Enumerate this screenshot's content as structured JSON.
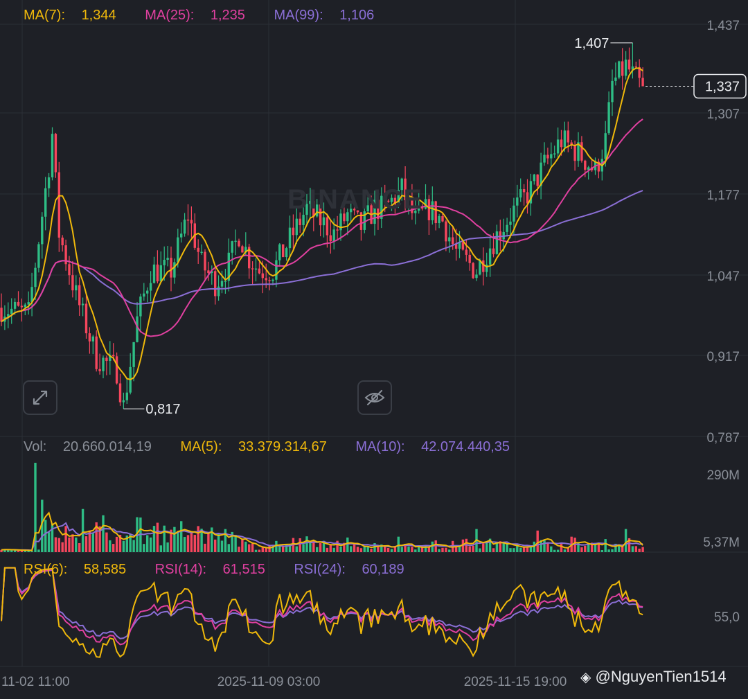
{
  "watermark": "BINANCE",
  "credit": "@NguyenTien1514",
  "colors": {
    "background": "#1e2026",
    "grid": "#2b2f36",
    "up": "#2ebd85",
    "down": "#f6465d",
    "ma_fast": "#f0b90b",
    "ma_mid": "#e040a0",
    "ma_slow": "#8b6fd6"
  },
  "legend_price": [
    {
      "label": "MA(7):",
      "value": "1,344",
      "color": "#f0b90b"
    },
    {
      "label": "MA(25):",
      "value": "1,235",
      "color": "#e040a0"
    },
    {
      "label": "MA(99):",
      "value": "1,106",
      "color": "#8b6fd6"
    }
  ],
  "legend_volume": [
    {
      "label": "Vol:",
      "value": "20.660.014,19",
      "color": "#8a8f98"
    },
    {
      "label": "MA(5):",
      "value": "33.379.314,67",
      "color": "#f0b90b"
    },
    {
      "label": "MA(10):",
      "value": "42.074.440,35",
      "color": "#8b6fd6"
    }
  ],
  "legend_rsi": [
    {
      "label": "RSI(6):",
      "value": "58,585",
      "color": "#f0b90b"
    },
    {
      "label": "RSI(14):",
      "value": "61,515",
      "color": "#e040a0"
    },
    {
      "label": "RSI(24):",
      "value": "60,189",
      "color": "#8b6fd6"
    }
  ],
  "icons": {
    "expand": "expand-icon",
    "hide": "eye-off-icon",
    "logo": "binance-logo-icon"
  },
  "chart_data": {
    "type": "candlestick",
    "price_axis": {
      "ticks": [
        "1,437",
        "1,307",
        "1,177",
        "1,047",
        "0,917",
        "0,787"
      ],
      "values": [
        1.437,
        1.307,
        1.177,
        1.047,
        0.917,
        0.787
      ]
    },
    "current_price": "1,337",
    "high_label": "1,407",
    "low_label": "0,817",
    "time_labels": [
      "11-02 11:00",
      "2025-11-09 03:00",
      "2025-11-15 19:00"
    ],
    "volume_axis": {
      "ticks": [
        "290M",
        "5,37M"
      ]
    },
    "rsi_axis": {
      "ticks": [
        "55,0"
      ]
    },
    "close_path": [
      [
        0,
        0.98
      ],
      [
        8,
        0.97
      ],
      [
        14,
        1.21
      ],
      [
        15,
        1.26
      ],
      [
        17,
        1.1
      ],
      [
        22,
        1.0
      ],
      [
        28,
        0.9
      ],
      [
        34,
        0.88
      ],
      [
        36,
        0.82
      ],
      [
        40,
        0.96
      ],
      [
        44,
        1.04
      ],
      [
        50,
        1.04
      ],
      [
        55,
        1.13
      ],
      [
        59,
        1.05
      ],
      [
        63,
        1.02
      ],
      [
        67,
        1.05
      ],
      [
        70,
        1.1
      ],
      [
        73,
        1.06
      ],
      [
        76,
        1.04
      ],
      [
        80,
        1.04
      ],
      [
        86,
        1.1
      ],
      [
        90,
        1.14
      ],
      [
        94,
        1.12
      ],
      [
        98,
        1.1
      ],
      [
        102,
        1.13
      ],
      [
        106,
        1.11
      ],
      [
        110,
        1.14
      ],
      [
        113,
        1.14
      ],
      [
        118,
        1.17
      ],
      [
        122,
        1.12
      ],
      [
        126,
        1.14
      ],
      [
        130,
        1.12
      ],
      [
        134,
        1.07
      ],
      [
        140,
        1.04
      ],
      [
        144,
        1.08
      ],
      [
        150,
        1.13
      ],
      [
        156,
        1.17
      ],
      [
        160,
        1.21
      ],
      [
        165,
        1.25
      ],
      [
        170,
        1.23
      ],
      [
        175,
        1.2
      ],
      [
        178,
        1.25
      ],
      [
        180,
        1.34
      ],
      [
        184,
        1.37
      ],
      [
        188,
        1.34
      ]
    ],
    "volume_spikes": [
      [
        10,
        290
      ],
      [
        12,
        170
      ],
      [
        24,
        140
      ],
      [
        140,
        75
      ],
      [
        158,
        70
      ],
      [
        184,
        75
      ]
    ],
    "rsi_range": [
      0,
      100
    ]
  }
}
